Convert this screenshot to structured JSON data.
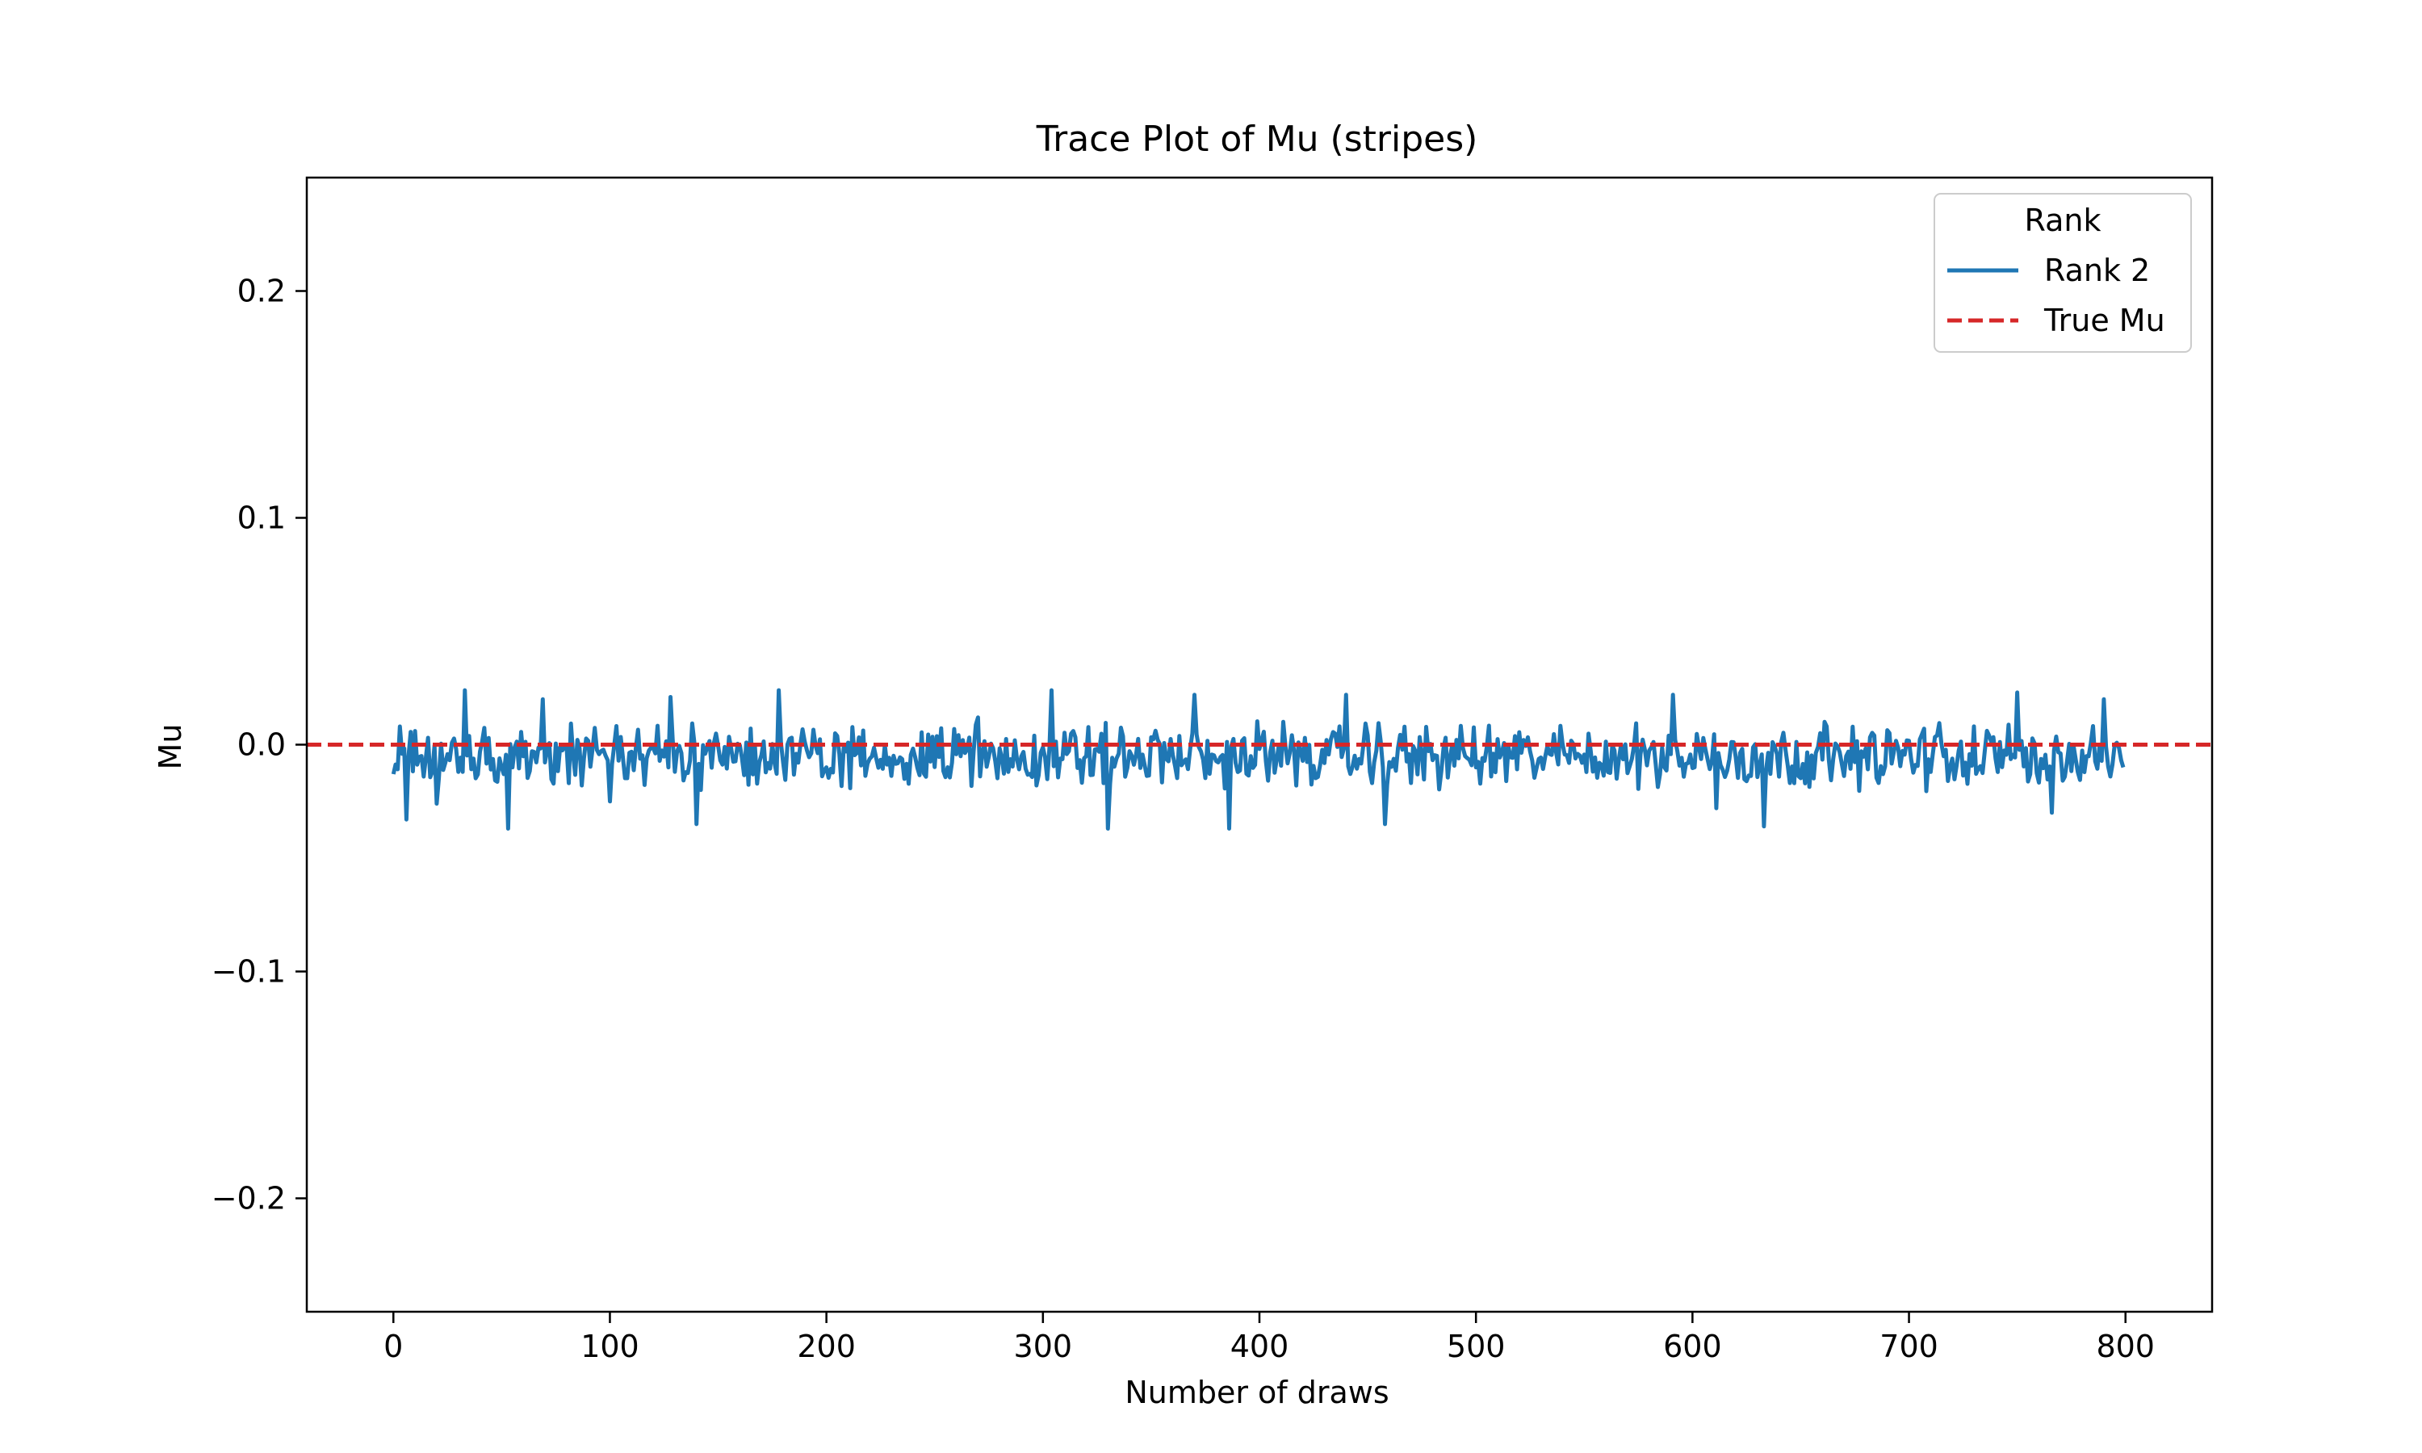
{
  "chart_data": {
    "type": "line",
    "title": "Trace Plot of Mu (stripes)",
    "xlabel": "Number of draws",
    "ylabel": "Mu",
    "xlim": [
      -40,
      840
    ],
    "ylim": [
      -0.25,
      0.25
    ],
    "xticks": [
      0,
      100,
      200,
      300,
      400,
      500,
      600,
      700,
      800
    ],
    "xtick_labels": [
      "0",
      "100",
      "200",
      "300",
      "400",
      "500",
      "600",
      "700",
      "800"
    ],
    "yticks": [
      0.2,
      0.1,
      0.0,
      -0.1,
      -0.2
    ],
    "ytick_labels": [
      "0.2",
      "0.1",
      "0.0",
      "−0.1",
      "−0.2"
    ],
    "grid": false,
    "legend": {
      "title": "Rank",
      "placement": "top-right",
      "entries": [
        "Rank 2",
        "True Mu"
      ]
    },
    "series": [
      {
        "name": "Rank 2",
        "color": "#1f77b4",
        "style": "solid",
        "x_start": 0,
        "x_step": 1,
        "n_points": 800,
        "y_range": [
          -0.037,
          0.025
        ],
        "y_keypoints": [
          [
            0,
            -0.013
          ],
          [
            3,
            0.008
          ],
          [
            6,
            -0.033
          ],
          [
            10,
            0.006
          ],
          [
            20,
            -0.026
          ],
          [
            33,
            0.024
          ],
          [
            53,
            -0.037
          ],
          [
            69,
            0.02
          ],
          [
            100,
            -0.025
          ],
          [
            128,
            0.021
          ],
          [
            140,
            -0.035
          ],
          [
            178,
            0.024
          ],
          [
            200,
            -0.01
          ],
          [
            270,
            0.012
          ],
          [
            304,
            0.024
          ],
          [
            330,
            -0.037
          ],
          [
            370,
            0.022
          ],
          [
            386,
            -0.037
          ],
          [
            440,
            0.022
          ],
          [
            458,
            -0.035
          ],
          [
            500,
            -0.01
          ],
          [
            591,
            0.022
          ],
          [
            611,
            -0.028
          ],
          [
            633,
            -0.036
          ],
          [
            750,
            0.023
          ],
          [
            766,
            -0.03
          ],
          [
            790,
            0.02
          ],
          [
            799,
            -0.01
          ]
        ]
      },
      {
        "name": "True Mu",
        "color": "#d62728",
        "style": "dashed",
        "y": 0.0
      }
    ]
  }
}
